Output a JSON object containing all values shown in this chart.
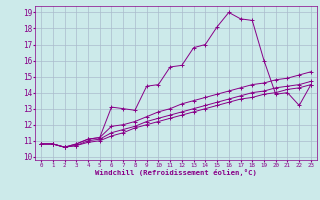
{
  "xlabel": "Windchill (Refroidissement éolien,°C)",
  "bg_color": "#cceaea",
  "grid_color": "#aabbcc",
  "line_color": "#880088",
  "xlim": [
    -0.5,
    23.5
  ],
  "ylim": [
    9.8,
    19.4
  ],
  "x_ticks": [
    0,
    1,
    2,
    3,
    4,
    5,
    6,
    7,
    8,
    9,
    10,
    11,
    12,
    13,
    14,
    15,
    16,
    17,
    18,
    19,
    20,
    21,
    22,
    23
  ],
  "y_ticks": [
    10,
    11,
    12,
    13,
    14,
    15,
    16,
    17,
    18,
    19
  ],
  "line1": [
    10.8,
    10.8,
    10.6,
    10.8,
    11.1,
    11.2,
    13.1,
    13.0,
    12.9,
    14.4,
    14.5,
    15.6,
    15.7,
    16.8,
    17.0,
    18.1,
    19.0,
    18.6,
    18.5,
    16.0,
    13.9,
    14.0,
    13.2,
    14.5
  ],
  "line2": [
    10.8,
    10.8,
    10.6,
    10.8,
    11.1,
    11.2,
    11.9,
    12.0,
    12.2,
    12.5,
    12.8,
    13.0,
    13.3,
    13.5,
    13.7,
    13.9,
    14.1,
    14.3,
    14.5,
    14.6,
    14.8,
    14.9,
    15.1,
    15.3
  ],
  "line3": [
    10.8,
    10.8,
    10.6,
    10.7,
    11.0,
    11.1,
    11.5,
    11.7,
    11.9,
    12.2,
    12.4,
    12.6,
    12.8,
    13.0,
    13.2,
    13.4,
    13.6,
    13.8,
    14.0,
    14.1,
    14.3,
    14.4,
    14.5,
    14.7
  ],
  "line4": [
    10.8,
    10.8,
    10.6,
    10.7,
    10.9,
    11.0,
    11.3,
    11.5,
    11.8,
    12.0,
    12.2,
    12.4,
    12.6,
    12.8,
    13.0,
    13.2,
    13.4,
    13.6,
    13.7,
    13.9,
    14.0,
    14.2,
    14.3,
    14.5
  ]
}
